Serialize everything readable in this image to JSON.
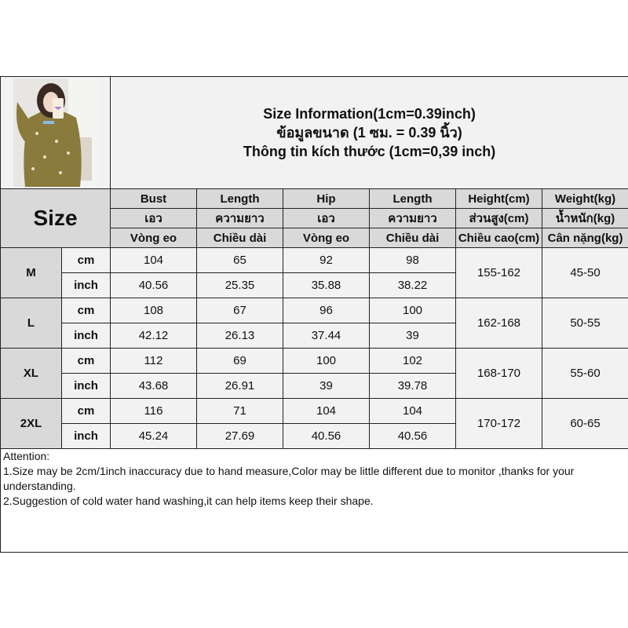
{
  "title": {
    "line1": "Size Information(1cm=0.39inch)",
    "line2": "ข้อมูลขนาด (1 ซม. = 0.39 นิ้ว)",
    "line3": "Thông tin kích thước (1cm=0,39 inch)"
  },
  "header": {
    "size_label": "Size",
    "columns": [
      {
        "en": "Bust",
        "th": "เอว",
        "vi": "Vòng eo"
      },
      {
        "en": "Length",
        "th": "ความยาว",
        "vi": "Chiều dài"
      },
      {
        "en": "Hip",
        "th": "เอว",
        "vi": "Vòng eo"
      },
      {
        "en": "Length",
        "th": "ความยาว",
        "vi": "Chiều dài"
      },
      {
        "en": "Height(cm)",
        "th": "ส่วนสูง(cm)",
        "vi": "Chiều cao(cm)"
      },
      {
        "en": "Weight(kg)",
        "th": "น้ำหนัก(kg)",
        "vi": "Cân nặng(kg)"
      }
    ]
  },
  "units": {
    "cm": "cm",
    "inch": "inch"
  },
  "sizes": [
    {
      "size": "M",
      "cm": [
        "104",
        "65",
        "92",
        "98"
      ],
      "inch": [
        "40.56",
        "25.35",
        "35.88",
        "38.22"
      ],
      "height": "155-162",
      "weight": "45-50"
    },
    {
      "size": "L",
      "cm": [
        "108",
        "67",
        "96",
        "100"
      ],
      "inch": [
        "42.12",
        "26.13",
        "37.44",
        "39"
      ],
      "height": "162-168",
      "weight": "50-55"
    },
    {
      "size": "XL",
      "cm": [
        "112",
        "69",
        "100",
        "102"
      ],
      "inch": [
        "43.68",
        "26.91",
        "39",
        "39.78"
      ],
      "height": "168-170",
      "weight": "55-60"
    },
    {
      "size": "2XL",
      "cm": [
        "116",
        "71",
        "104",
        "104"
      ],
      "inch": [
        "45.24",
        "27.69",
        "40.56",
        "40.56"
      ],
      "height": "170-172",
      "weight": "60-65"
    }
  ],
  "attention": {
    "heading": "Attention:",
    "note1": "1.Size may be 2cm/1inch inaccuracy due to hand measure,Color may be little different due to monitor ,thanks for your understanding.",
    "note2": "2.Suggestion of cold water hand washing,it can help items keep their shape."
  }
}
